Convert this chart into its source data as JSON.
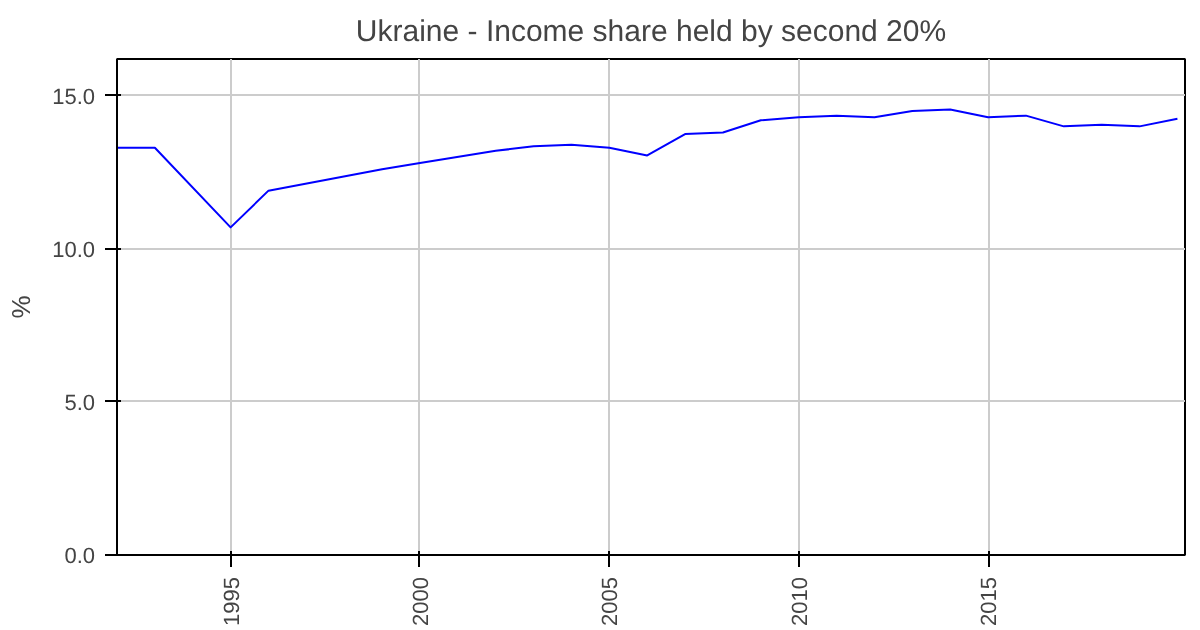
{
  "chart_data": {
    "type": "line",
    "title": "Ukraine - Income share held by second 20%",
    "ylabel": "%",
    "x": [
      1992,
      1993,
      1995,
      1996,
      1999,
      2000,
      2002,
      2003,
      2004,
      2005,
      2006,
      2007,
      2008,
      2009,
      2010,
      2011,
      2012,
      2013,
      2014,
      2015,
      2016,
      2017,
      2018,
      2019,
      2020
    ],
    "series": [
      {
        "color": "#0000ff",
        "values": [
          13.3,
          13.3,
          10.7,
          11.9,
          12.6,
          12.8,
          13.2,
          13.35,
          13.4,
          13.3,
          13.05,
          13.75,
          13.8,
          14.2,
          14.3,
          14.35,
          14.3,
          14.5,
          14.55,
          14.3,
          14.35,
          14.0,
          14.05,
          14.0,
          14.25
        ]
      }
    ],
    "xlim": [
      1992,
      2020.2
    ],
    "ylim": [
      0,
      16.2
    ],
    "xticks": [
      1995,
      2000,
      2005,
      2010,
      2015
    ],
    "yticks": [
      {
        "value": 0,
        "label": "0.0"
      },
      {
        "value": 5,
        "label": "5.0"
      },
      {
        "value": 10,
        "label": "10.0"
      },
      {
        "value": 15,
        "label": "15.0"
      }
    ],
    "grid": true,
    "marker": "none",
    "line_style": "solid"
  }
}
